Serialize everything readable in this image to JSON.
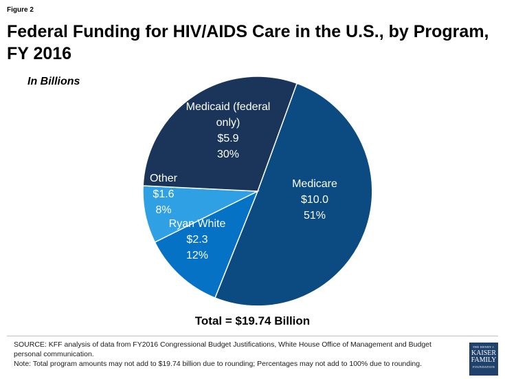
{
  "figure_label": "Figure 2",
  "chart_data": {
    "type": "pie",
    "title": "Federal Funding for HIV/AIDS Care in the U.S., by Program, FY 2016",
    "subtitle": "In Billions",
    "total_label": "Total = $19.74 Billion",
    "slices": [
      {
        "label": "Medicare",
        "value": 10.0,
        "value_label": "$10.0",
        "percent_label": "51%",
        "color": "#0b4b82"
      },
      {
        "label": "Ryan White",
        "value": 2.3,
        "value_label": "$2.3",
        "percent_label": "12%",
        "color": "#0572c5"
      },
      {
        "label": "Other",
        "value": 1.6,
        "value_label": "$1.6",
        "percent_label": "8%",
        "color": "#2fa0e3"
      },
      {
        "label": "Medicaid (federal only)",
        "value": 5.9,
        "value_label": "$5.9",
        "percent_label": "30%",
        "color": "#1a3559"
      }
    ]
  },
  "source_text": "SOURCE: KFF analysis of data from FY2016 Congressional Budget Justifications, White House Office of Management and Budget personal communication.",
  "note_text": "Note: Total program amounts may not add to $19.74 billion due to rounding; Percentages may not add to 100% due to rounding.",
  "logo": {
    "line1": "THE HENRY J.",
    "line2": "KAISER",
    "line3": "FAMILY",
    "line4": "FOUNDATION",
    "color": "#20416b"
  }
}
